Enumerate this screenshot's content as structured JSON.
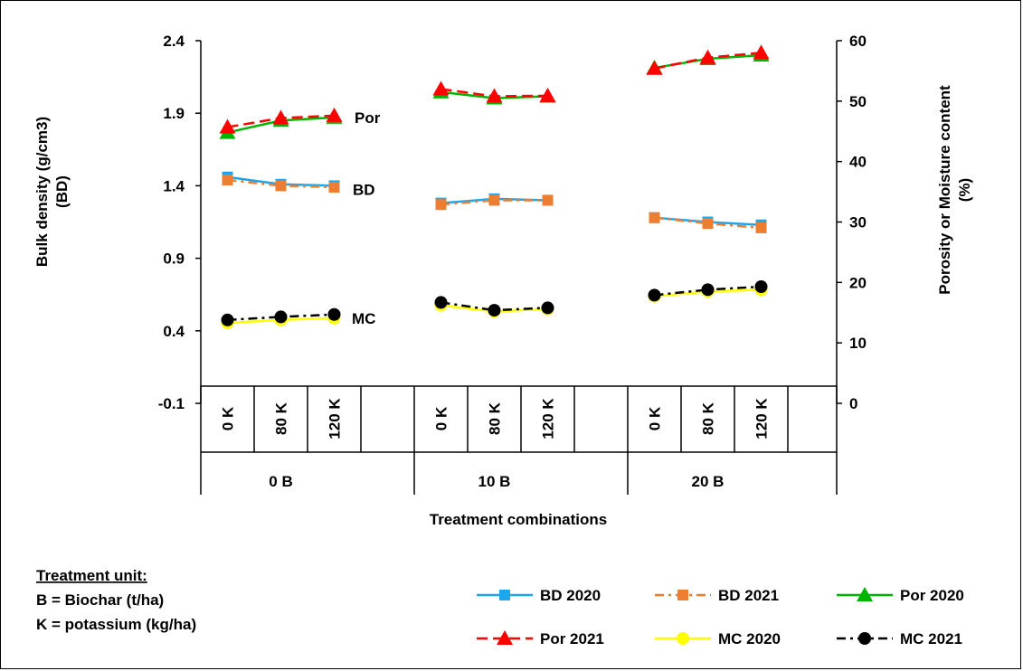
{
  "chart_data": {
    "type": "line",
    "xlabel": "Treatment combinations",
    "ylabel_left": "Bulk density (g/cm3)",
    "ylabel_left_sub": "(BD)",
    "ylabel_right": "Porosity or Moisture content",
    "ylabel_right_sub": "(%)",
    "ylim_left": [
      -0.1,
      2.4
    ],
    "yticks_left": [
      "2.4",
      "1.9",
      "1.4",
      "0.9",
      "0.4",
      "-0.1"
    ],
    "ylim_right": [
      0,
      60
    ],
    "yticks_right": [
      "60",
      "50",
      "40",
      "30",
      "20",
      "10",
      "0"
    ],
    "groups": [
      "0 B",
      "10 B",
      "20 B"
    ],
    "subcategories": [
      "0 K",
      "80 K",
      "120 K"
    ],
    "grid": false,
    "legend_position": "bottom-right",
    "series": [
      {
        "name": "BD 2020",
        "axis": "left",
        "color": "#1CA7EC",
        "marker": "square",
        "dash": "solid",
        "values": [
          [
            1.46,
            1.41,
            1.4
          ],
          [
            1.28,
            1.31,
            1.3
          ],
          [
            1.18,
            1.15,
            1.13
          ]
        ]
      },
      {
        "name": "BD 2021",
        "axis": "left",
        "color": "#ED7D31",
        "marker": "square",
        "dash": "dashdot",
        "values": [
          [
            1.44,
            1.4,
            1.39
          ],
          [
            1.27,
            1.3,
            1.3
          ],
          [
            1.18,
            1.14,
            1.11
          ]
        ]
      },
      {
        "name": "Por 2020",
        "axis": "right",
        "color": "#00B400",
        "marker": "triangle",
        "dash": "solid",
        "values": [
          [
            44.8,
            46.8,
            47.3
          ],
          [
            51.5,
            50.5,
            50.8
          ],
          [
            55.5,
            57.0,
            57.6
          ]
        ]
      },
      {
        "name": "Por 2021",
        "axis": "right",
        "color": "#FF0000",
        "marker": "triangle",
        "dash": "dash",
        "values": [
          [
            45.7,
            47.2,
            47.6
          ],
          [
            52.0,
            50.8,
            50.9
          ],
          [
            55.4,
            57.2,
            58.0
          ]
        ]
      },
      {
        "name": "MC 2020",
        "axis": "right",
        "color": "#FFFF00",
        "marker": "circle",
        "dash": "solid",
        "values": [
          [
            13.3,
            13.8,
            14.1
          ],
          [
            16.2,
            15.2,
            15.6
          ],
          [
            17.7,
            18.5,
            18.8
          ]
        ]
      },
      {
        "name": "MC 2021",
        "axis": "right",
        "color": "#000000",
        "marker": "circle",
        "dash": "dashdot",
        "values": [
          [
            13.8,
            14.3,
            14.7
          ],
          [
            16.7,
            15.4,
            15.8
          ],
          [
            17.9,
            18.8,
            19.3
          ]
        ]
      }
    ],
    "annotations": [
      "Por",
      "BD",
      "MC"
    ]
  },
  "note": {
    "title": "Treatment unit:",
    "line1": "B = Biochar (t/ha)",
    "line2": "K = potassium (kg/ha)"
  }
}
